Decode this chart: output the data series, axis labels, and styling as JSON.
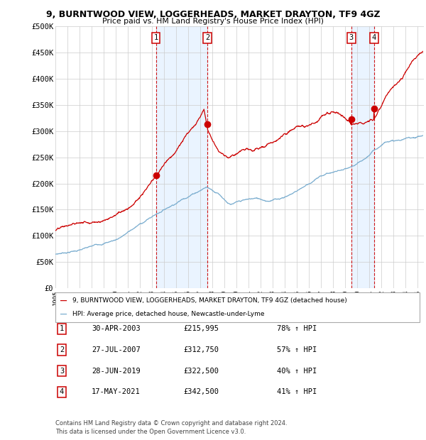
{
  "title1": "9, BURNTWOOD VIEW, LOGGERHEADS, MARKET DRAYTON, TF9 4GZ",
  "title2": "Price paid vs. HM Land Registry's House Price Index (HPI)",
  "ylabel_ticks": [
    "£0",
    "£50K",
    "£100K",
    "£150K",
    "£200K",
    "£250K",
    "£300K",
    "£350K",
    "£400K",
    "£450K",
    "£500K"
  ],
  "ytick_vals": [
    0,
    50000,
    100000,
    150000,
    200000,
    250000,
    300000,
    350000,
    400000,
    450000,
    500000
  ],
  "xmin": 1995.0,
  "xmax": 2025.5,
  "ymin": 0,
  "ymax": 500000,
  "legend_line1": "9, BURNTWOOD VIEW, LOGGERHEADS, MARKET DRAYTON, TF9 4GZ (detached house)",
  "legend_line2": "HPI: Average price, detached house, Newcastle-under-Lyme",
  "transactions": [
    {
      "id": 1,
      "date": "30-APR-2003",
      "price": 215995,
      "pct": "78%",
      "x_year": 2003.33
    },
    {
      "id": 2,
      "date": "27-JUL-2007",
      "price": 312750,
      "pct": "57%",
      "x_year": 2007.58
    },
    {
      "id": 3,
      "date": "28-JUN-2019",
      "price": 322500,
      "pct": "40%",
      "x_year": 2019.5
    },
    {
      "id": 4,
      "date": "17-MAY-2021",
      "price": 342500,
      "pct": "41%",
      "x_year": 2021.38
    }
  ],
  "footnote1": "Contains HM Land Registry data © Crown copyright and database right 2024.",
  "footnote2": "This data is licensed under the Open Government Licence v3.0.",
  "red_color": "#cc0000",
  "blue_color": "#7aadcf",
  "background_color": "#ffffff",
  "grid_color": "#cccccc",
  "shade_color": "#ddeeff"
}
